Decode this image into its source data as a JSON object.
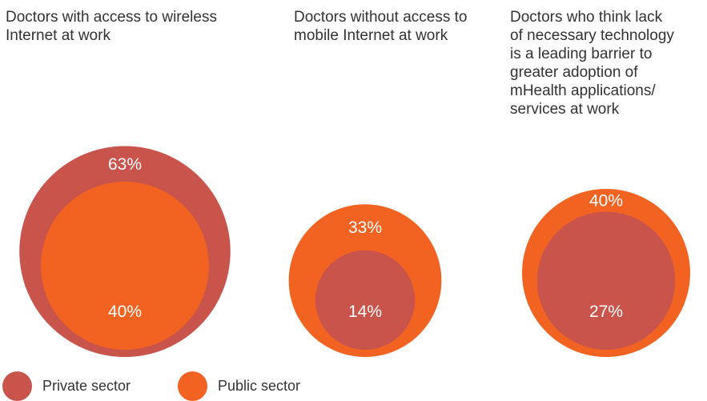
{
  "chart_data": {
    "type": "bubble",
    "colors": {
      "private": "#c9544b",
      "public": "#f26322"
    },
    "legend": [
      {
        "key": "private",
        "label": "Private sector"
      },
      {
        "key": "public",
        "label": "Public sector"
      }
    ],
    "panels": [
      {
        "title": "Doctors with access to wireless\nInternet at work",
        "private": 63,
        "public": 40,
        "private_label": "63%",
        "public_label": "40%"
      },
      {
        "title": "Doctors without access to\nmobile Internet at work",
        "private": 14,
        "public": 33,
        "private_label": "14%",
        "public_label": "33%"
      },
      {
        "title": "Doctors who think lack\nof necessary technology\nis a leading barrier to\ngreater adoption of\nmHealth applications/\nservices at work",
        "private": 27,
        "public": 40,
        "private_label": "27%",
        "public_label": "40%"
      }
    ]
  }
}
